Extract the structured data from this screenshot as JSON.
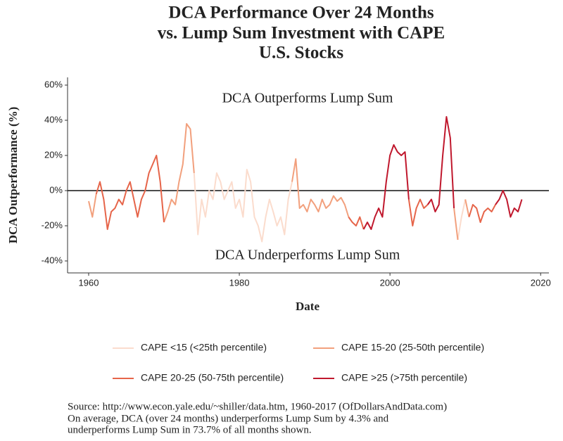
{
  "chart_data": {
    "type": "line",
    "title": [
      "DCA Performance Over 24 Months",
      "vs. Lump Sum Investment with CAPE",
      "U.S. Stocks"
    ],
    "x_label": "Date",
    "y_label": "DCA Outperformance (%)",
    "annotations": [
      "DCA Outperforms Lump Sum",
      "DCA Underperforms Lump Sum"
    ],
    "note": [
      "Source:  http://www.econ.yale.edu/~shiller/data.htm, 1960-2017 (OfDollarsAndData.com)",
      "On average, DCA (over 24 months) underperforms Lump Sum by 4.3% and",
      "underperforms Lump Sum in 73.7% of all months shown."
    ],
    "x": [
      1960,
      1960.5,
      1961,
      1961.5,
      1962,
      1962.5,
      1963,
      1963.5,
      1964,
      1964.5,
      1965,
      1965.5,
      1966,
      1966.5,
      1967,
      1967.5,
      1968,
      1968.5,
      1969,
      1969.5,
      1970,
      1970.5,
      1971,
      1971.5,
      1972,
      1972.5,
      1973,
      1973.5,
      1974,
      1974.5,
      1975,
      1975.5,
      1976,
      1976.5,
      1977,
      1977.5,
      1978,
      1978.5,
      1979,
      1979.5,
      1980,
      1980.5,
      1981,
      1981.5,
      1982,
      1982.5,
      1983,
      1983.5,
      1984,
      1984.5,
      1985,
      1985.5,
      1986,
      1986.5,
      1987,
      1987.5,
      1988,
      1988.5,
      1989,
      1989.5,
      1990,
      1990.5,
      1991,
      1991.5,
      1992,
      1992.5,
      1993,
      1993.5,
      1994,
      1994.5,
      1995,
      1995.5,
      1996,
      1996.5,
      1997,
      1997.5,
      1998,
      1998.5,
      1999,
      1999.5,
      2000,
      2000.5,
      2001,
      2001.5,
      2002,
      2002.5,
      2003,
      2003.5,
      2004,
      2004.5,
      2005,
      2005.5,
      2006,
      2006.5,
      2007,
      2007.5,
      2008,
      2008.5,
      2009,
      2009.5,
      2010,
      2010.5,
      2011,
      2011.5,
      2012,
      2012.5,
      2013,
      2013.5,
      2014,
      2014.5,
      2015,
      2015.5,
      2016,
      2016.5,
      2017,
      2017.5
    ],
    "series": [
      {
        "name": "CAPE <15 (<25th percentile)",
        "color": "#fbdccd",
        "values": [
          null,
          null,
          null,
          null,
          null,
          null,
          null,
          null,
          null,
          null,
          null,
          null,
          null,
          null,
          null,
          null,
          null,
          null,
          null,
          null,
          null,
          null,
          null,
          null,
          null,
          null,
          null,
          null,
          10,
          -25,
          -5,
          -15,
          0,
          -5,
          10,
          5,
          -5,
          0,
          5,
          -10,
          -5,
          -15,
          12,
          5,
          -15,
          -20,
          -29,
          -15,
          -5,
          -12,
          -20,
          -15,
          -25,
          -5,
          5,
          null,
          null,
          null,
          null,
          null,
          null,
          null,
          null,
          null,
          null,
          null,
          null,
          null,
          null,
          null,
          null,
          null,
          null,
          null,
          null,
          null,
          null,
          null,
          null,
          null,
          null,
          null,
          null,
          null,
          null,
          null,
          null,
          null,
          null,
          null,
          null,
          null,
          null,
          null,
          null,
          null,
          null,
          null,
          -28,
          -15,
          -5,
          null,
          null,
          null,
          null,
          null,
          null,
          null,
          null,
          null,
          null,
          null,
          null,
          null,
          null,
          null
        ]
      },
      {
        "name": "CAPE 15-20 (25-50th percentile)",
        "color": "#f2a07d",
        "values": [
          -6,
          -15,
          -2,
          null,
          null,
          null,
          null,
          null,
          null,
          null,
          null,
          null,
          null,
          null,
          null,
          null,
          null,
          null,
          null,
          null,
          -18,
          -12,
          -5,
          -8,
          5,
          15,
          38,
          35,
          10,
          null,
          null,
          null,
          null,
          null,
          null,
          null,
          null,
          null,
          null,
          null,
          null,
          null,
          null,
          null,
          null,
          null,
          null,
          null,
          null,
          null,
          null,
          null,
          null,
          null,
          5,
          18,
          -10,
          -8,
          -12,
          -5,
          -8,
          -12,
          -5,
          -10,
          -8,
          -3,
          -6,
          -4,
          -8,
          -15,
          null,
          null,
          null,
          null,
          null,
          null,
          null,
          null,
          null,
          null,
          null,
          null,
          null,
          null,
          null,
          null,
          null,
          null,
          null,
          null,
          null,
          null,
          null,
          null,
          null,
          null,
          null,
          -10,
          -28,
          null,
          -5,
          -15,
          null,
          null,
          null,
          null,
          null,
          null,
          null,
          null,
          null,
          null,
          null,
          null,
          null,
          null
        ]
      },
      {
        "name": "CAPE 20-25 (50-75th percentile)",
        "color": "#e6654a",
        "values": [
          null,
          null,
          -2,
          5,
          -5,
          -22,
          -12,
          -10,
          -5,
          -8,
          0,
          5,
          -5,
          -15,
          -5,
          0,
          10,
          15,
          20,
          5,
          -18,
          null,
          null,
          null,
          null,
          null,
          null,
          null,
          null,
          null,
          null,
          null,
          null,
          null,
          null,
          null,
          null,
          null,
          null,
          null,
          null,
          null,
          null,
          null,
          null,
          null,
          null,
          null,
          null,
          null,
          null,
          null,
          null,
          null,
          null,
          null,
          null,
          null,
          null,
          null,
          null,
          null,
          null,
          null,
          null,
          null,
          null,
          null,
          null,
          -15,
          -18,
          -20,
          -15,
          -22,
          null,
          null,
          null,
          null,
          null,
          null,
          null,
          null,
          null,
          null,
          null,
          -5,
          -20,
          -10,
          -5,
          -10,
          -8,
          null,
          null,
          null,
          null,
          null,
          null,
          null,
          null,
          null,
          null,
          -15,
          -8,
          -10,
          -18,
          -12,
          -10,
          -12,
          -8,
          null,
          null,
          null,
          null,
          null,
          null,
          null
        ]
      },
      {
        "name": "CAPE >25 (>75th percentile)",
        "color": "#c0182d",
        "values": [
          null,
          null,
          null,
          null,
          null,
          null,
          null,
          null,
          null,
          null,
          null,
          null,
          null,
          null,
          null,
          null,
          null,
          null,
          null,
          null,
          null,
          null,
          null,
          null,
          null,
          null,
          null,
          null,
          null,
          null,
          null,
          null,
          null,
          null,
          null,
          null,
          null,
          null,
          null,
          null,
          null,
          null,
          null,
          null,
          null,
          null,
          null,
          null,
          null,
          null,
          null,
          null,
          null,
          null,
          null,
          null,
          null,
          null,
          null,
          null,
          null,
          null,
          null,
          null,
          null,
          null,
          null,
          null,
          null,
          null,
          null,
          null,
          null,
          -22,
          -18,
          -22,
          -15,
          -10,
          -15,
          5,
          20,
          26,
          22,
          20,
          22,
          -5,
          null,
          null,
          null,
          null,
          -8,
          -5,
          -12,
          -8,
          20,
          42,
          30,
          -10,
          null,
          null,
          null,
          null,
          null,
          null,
          null,
          null,
          null,
          null,
          -8,
          -5,
          0,
          -5,
          -15,
          -10,
          -12,
          -5
        ]
      }
    ],
    "xlim": [
      1957.2,
      2021.1
    ],
    "ylim": [
      -46.8,
      64.4
    ],
    "xticks": [
      1960,
      1980,
      2000,
      2020
    ],
    "yticks": [
      {
        "value": -40,
        "label": "-40%"
      },
      {
        "value": -20,
        "label": "-20%"
      },
      {
        "value": 0,
        "label": "0%"
      },
      {
        "value": 20,
        "label": "20%"
      },
      {
        "value": 40,
        "label": "40%"
      },
      {
        "value": 60,
        "label": "60%"
      }
    ],
    "hline": 0,
    "grid": false
  }
}
